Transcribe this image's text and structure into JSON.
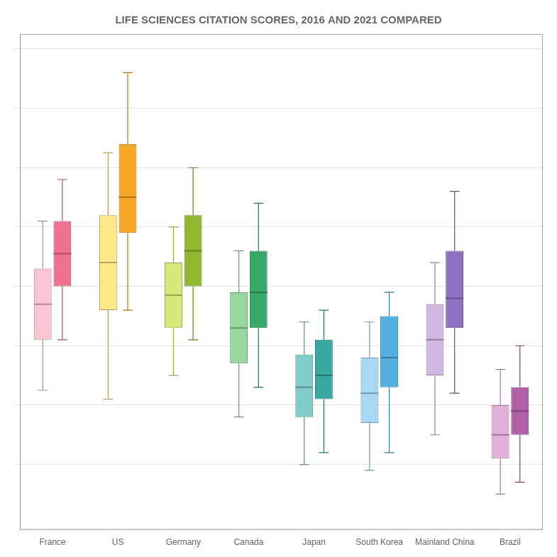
{
  "chart_data": {
    "type": "box",
    "title": "LIFE SCIENCES CITATION SCORES, 2016 AND 2021 COMPARED",
    "categories": [
      "France",
      "US",
      "Germany",
      "Canada",
      "Japan",
      "South Korea",
      "Mainland China",
      "Brazil"
    ],
    "series": [
      {
        "colors": [
          "#f9c5d0",
          "#fde88a",
          "#d8e878",
          "#98d8a0",
          "#80ccc8",
          "#a8d8f4",
          "#d0b8e0",
          "#e0b0d8"
        ],
        "values": [
          {
            "whisker_low": 0.25,
            "q1": 0.42,
            "median": 0.54,
            "q3": 0.66,
            "whisker_high": 0.82
          },
          {
            "whisker_low": 0.22,
            "q1": 0.52,
            "median": 0.68,
            "q3": 0.84,
            "whisker_high": 1.05
          },
          {
            "whisker_low": 0.3,
            "q1": 0.46,
            "median": 0.57,
            "q3": 0.68,
            "whisker_high": 0.8
          },
          {
            "whisker_low": 0.16,
            "q1": 0.34,
            "median": 0.46,
            "q3": 0.58,
            "whisker_high": 0.72
          },
          {
            "whisker_low": 0.0,
            "q1": 0.16,
            "median": 0.26,
            "q3": 0.37,
            "whisker_high": 0.48
          },
          {
            "whisker_low": -0.02,
            "q1": 0.14,
            "median": 0.24,
            "q3": 0.36,
            "whisker_high": 0.48
          },
          {
            "whisker_low": 0.1,
            "q1": 0.3,
            "median": 0.42,
            "q3": 0.54,
            "whisker_high": 0.68
          },
          {
            "whisker_low": -0.1,
            "q1": 0.02,
            "median": 0.1,
            "q3": 0.2,
            "whisker_high": 0.32
          }
        ]
      },
      {
        "colors": [
          "#f07090",
          "#f5a825",
          "#90b830",
          "#36a868",
          "#38a8a0",
          "#52b0e0",
          "#9070c0",
          "#b060a8"
        ],
        "values": [
          {
            "whisker_low": 0.42,
            "q1": 0.6,
            "median": 0.71,
            "q3": 0.82,
            "whisker_high": 0.96
          },
          {
            "whisker_low": 0.52,
            "q1": 0.78,
            "median": 0.9,
            "q3": 1.08,
            "whisker_high": 1.32
          },
          {
            "whisker_low": 0.42,
            "q1": 0.6,
            "median": 0.72,
            "q3": 0.84,
            "whisker_high": 1.0
          },
          {
            "whisker_low": 0.26,
            "q1": 0.46,
            "median": 0.58,
            "q3": 0.72,
            "whisker_high": 0.88
          },
          {
            "whisker_low": 0.04,
            "q1": 0.22,
            "median": 0.3,
            "q3": 0.42,
            "whisker_high": 0.52
          },
          {
            "whisker_low": 0.04,
            "q1": 0.26,
            "median": 0.36,
            "q3": 0.5,
            "whisker_high": 0.58
          },
          {
            "whisker_low": 0.24,
            "q1": 0.46,
            "median": 0.56,
            "q3": 0.72,
            "whisker_high": 0.92
          },
          {
            "whisker_low": -0.06,
            "q1": 0.1,
            "median": 0.18,
            "q3": 0.26,
            "whisker_high": 0.4
          }
        ]
      }
    ],
    "ylim": [
      -0.22,
      1.45
    ],
    "yticks": [
      0.0,
      0.2,
      0.4,
      0.6,
      0.8,
      1.0,
      1.2,
      1.4
    ],
    "grid": true,
    "tick_labels": "x"
  }
}
